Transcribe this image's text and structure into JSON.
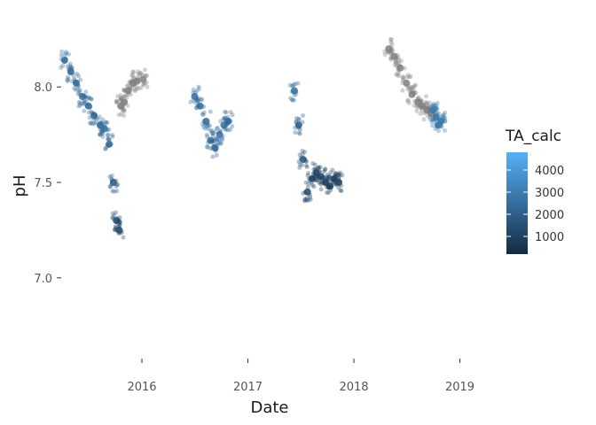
{
  "chart_data": {
    "type": "scatter",
    "xlabel": "Date",
    "ylabel": "pH",
    "x_ticks": [
      "2016",
      "2017",
      "2018",
      "2019"
    ],
    "y_ticks": [
      "7.0",
      "7.5",
      "8.0"
    ],
    "y_tick_values": [
      7.0,
      7.5,
      8.0
    ],
    "ylim": [
      6.6,
      8.4
    ],
    "xlim": [
      "2015-04-01",
      "2019-04-01"
    ],
    "grid": false,
    "color_legend": {
      "title": "TA_calc",
      "labels": [
        "4000",
        "3000",
        "2000",
        "1000"
      ],
      "values": [
        4000,
        3000,
        2000,
        1000
      ],
      "range": [
        200,
        4800
      ],
      "low_color": "#132b43",
      "high_color": "#56b1f7",
      "na_color": "#808080",
      "placement": "right"
    },
    "series": [
      {
        "x": [
          "2015-04-10",
          "2015-05-01",
          "2015-05-20",
          "2015-06-10",
          "2015-07-01",
          "2015-07-20",
          "2015-08-10",
          "2015-08-25",
          "2015-09-10",
          "2015-09-25",
          "2015-10-05",
          "2015-10-15"
        ],
        "y": [
          8.14,
          8.08,
          8.02,
          7.95,
          7.9,
          7.85,
          7.8,
          7.78,
          7.7,
          7.5,
          7.3,
          7.25
        ],
        "ta": [
          2600,
          2400,
          2300,
          2500,
          2400,
          2200,
          2300,
          2600,
          2400,
          1800,
          1400,
          1200
        ]
      },
      {
        "x": [
          "2015-10-20",
          "2015-11-01",
          "2015-11-15",
          "2015-12-01",
          "2015-12-15",
          "2016-01-05"
        ],
        "y": [
          7.9,
          7.92,
          7.98,
          8.02,
          8.03,
          8.04
        ],
        "ta": [
          null,
          null,
          null,
          null,
          null,
          null
        ]
      },
      {
        "x": [
          "2016-07-01",
          "2016-07-20",
          "2016-08-10",
          "2016-08-25",
          "2016-09-10",
          "2016-09-25",
          "2016-10-10",
          "2016-10-25"
        ],
        "y": [
          7.95,
          7.9,
          7.82,
          7.72,
          7.68,
          7.75,
          7.8,
          7.82
        ],
        "ta": [
          2600,
          2500,
          2300,
          2400,
          2200,
          2600,
          2500,
          2300
        ]
      },
      {
        "x": [
          "2017-06-10",
          "2017-06-25",
          "2017-07-10",
          "2017-07-25",
          "2017-08-10",
          "2017-08-25",
          "2017-09-10",
          "2017-09-25",
          "2017-10-10",
          "2017-10-25",
          "2017-11-10"
        ],
        "y": [
          7.98,
          7.8,
          7.62,
          7.45,
          7.52,
          7.55,
          7.53,
          7.5,
          7.48,
          7.52,
          7.5
        ],
        "ta": [
          2500,
          1900,
          1500,
          1200,
          1000,
          900,
          950,
          800,
          1000,
          900,
          850
        ]
      },
      {
        "x": [
          "2018-05-01",
          "2018-05-20",
          "2018-06-10",
          "2018-07-01",
          "2018-07-20",
          "2018-08-10",
          "2018-08-25",
          "2018-09-10",
          "2018-09-25"
        ],
        "y": [
          8.2,
          8.16,
          8.1,
          8.02,
          7.96,
          7.92,
          7.9,
          7.88,
          7.86
        ],
        "ta": [
          null,
          null,
          null,
          null,
          null,
          null,
          null,
          null,
          null
        ]
      },
      {
        "x": [
          "2018-10-01",
          "2018-10-10",
          "2018-10-20",
          "2018-10-28"
        ],
        "y": [
          7.88,
          7.84,
          7.8,
          7.82
        ],
        "ta": [
          3000,
          2800,
          2900,
          2700
        ]
      }
    ]
  }
}
